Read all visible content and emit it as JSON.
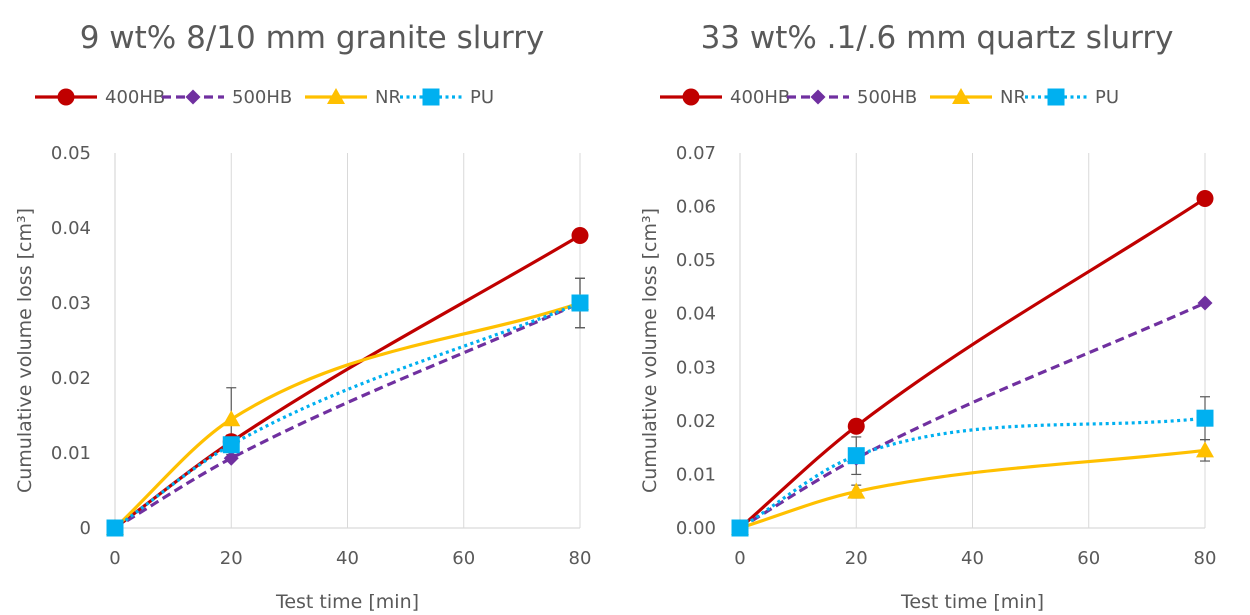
{
  "chart_data": [
    {
      "type": "line",
      "title": "9 wt% 8/10 mm granite slurry",
      "xlabel": "Test time [min]",
      "ylabel": "Cumulative volume loss [cm³]",
      "xlim": [
        0,
        80
      ],
      "ylim": [
        0,
        0.05
      ],
      "xticks": [
        "0",
        "20",
        "40",
        "60",
        "80"
      ],
      "yticks": [
        "0",
        "0.01",
        "0.02",
        "0.03",
        "0.04",
        "0.05"
      ],
      "grid": "vertical",
      "legend": "top",
      "x": [
        0,
        20,
        80
      ],
      "series": [
        {
          "name": "400HB",
          "values": [
            0,
            0.0115,
            0.039
          ],
          "color": "#c00000",
          "marker": "circle",
          "dash": "solid"
        },
        {
          "name": "500HB",
          "values": [
            0,
            0.0093,
            0.03
          ],
          "color": "#7030a0",
          "marker": "diamond",
          "dash": "dashed"
        },
        {
          "name": "NR",
          "values": [
            0,
            0.0145,
            0.03
          ],
          "color": "#ffc000",
          "marker": "triangle",
          "dash": "solid",
          "error": [
            0,
            0.0042,
            0.0033
          ]
        },
        {
          "name": "PU",
          "values": [
            0,
            0.0111,
            0.03
          ],
          "color": "#00b0f0",
          "marker": "square",
          "dash": "dotted",
          "error": [
            0,
            0.0013,
            0.0033
          ]
        }
      ]
    },
    {
      "type": "line",
      "title": "33 wt% .1/.6 mm quartz slurry",
      "xlabel": "Test time [min]",
      "ylabel": "Cumulative volume loss [cm³]",
      "xlim": [
        0,
        80
      ],
      "ylim": [
        0,
        0.07
      ],
      "xticks": [
        "0",
        "20",
        "40",
        "60",
        "80"
      ],
      "yticks": [
        "0.00",
        "0.01",
        "0.02",
        "0.03",
        "0.04",
        "0.05",
        "0.06",
        "0.07"
      ],
      "grid": "vertical",
      "legend": "top",
      "x": [
        0,
        20,
        80
      ],
      "series": [
        {
          "name": "400HB",
          "values": [
            0,
            0.019,
            0.0615
          ],
          "color": "#c00000",
          "marker": "circle",
          "dash": "solid"
        },
        {
          "name": "500HB",
          "values": [
            0,
            0.013,
            0.042
          ],
          "color": "#7030a0",
          "marker": "diamond",
          "dash": "dashed"
        },
        {
          "name": "NR",
          "values": [
            0,
            0.0068,
            0.0145
          ],
          "color": "#ffc000",
          "marker": "triangle",
          "dash": "solid",
          "error": [
            0,
            0.0012,
            0.002
          ]
        },
        {
          "name": "PU",
          "values": [
            0,
            0.0135,
            0.0205
          ],
          "color": "#00b0f0",
          "marker": "square",
          "dash": "dotted",
          "error": [
            0,
            0.0035,
            0.004
          ]
        }
      ]
    }
  ]
}
